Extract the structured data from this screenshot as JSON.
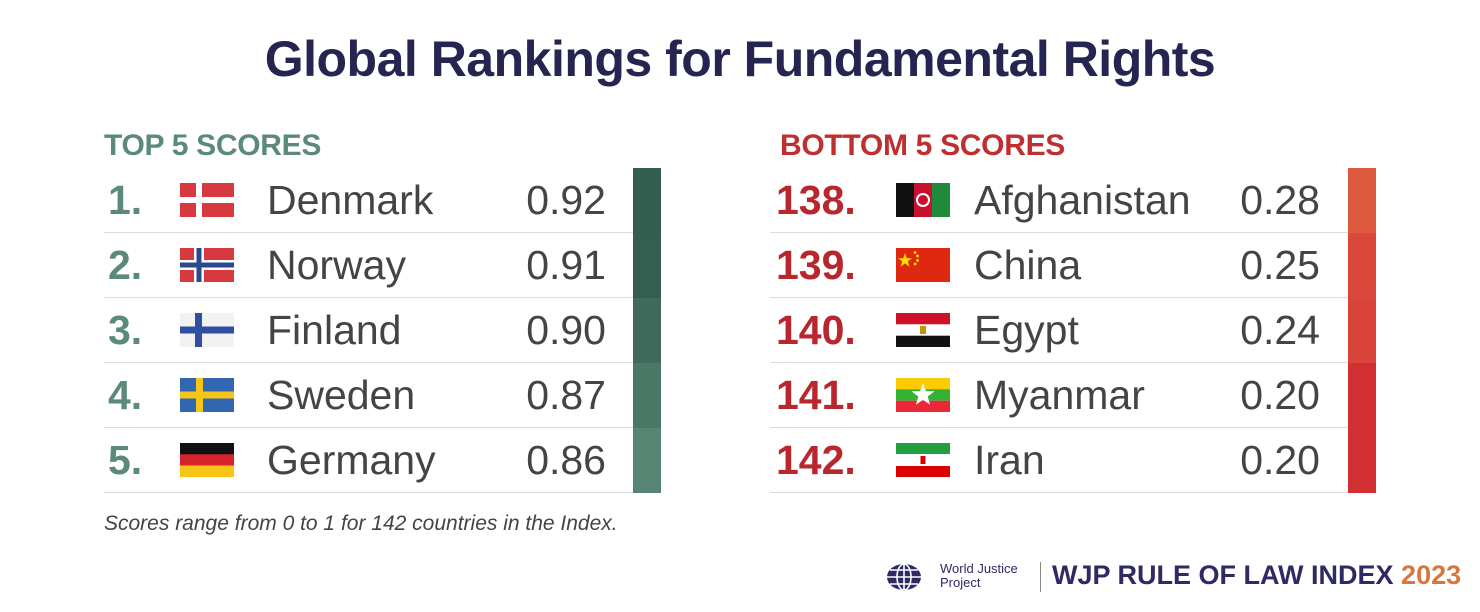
{
  "title": "Global Rankings for Fundamental Rights",
  "chart_data": [
    {
      "type": "table",
      "title": "TOP 5 SCORES",
      "ranks": [
        "1.",
        "2.",
        "3.",
        "4.",
        "5."
      ],
      "categories": [
        "Denmark",
        "Norway",
        "Finland",
        "Sweden",
        "Germany"
      ],
      "scores": [
        "0.92",
        "0.91",
        "0.90",
        "0.87",
        "0.86"
      ],
      "values": [
        0.92,
        0.91,
        0.9,
        0.87,
        0.86
      ],
      "color_scale": [
        "#335e4f",
        "#345f50",
        "#3f6b5c",
        "#4a7867",
        "#568573"
      ]
    },
    {
      "type": "table",
      "title": "BOTTOM 5 SCORES",
      "ranks": [
        "138.",
        "139.",
        "140.",
        "141.",
        "142."
      ],
      "categories": [
        "Afghanistan",
        "China",
        "Egypt",
        "Myanmar",
        "Iran"
      ],
      "scores": [
        "0.28",
        "0.25",
        "0.24",
        "0.20",
        "0.20"
      ],
      "values": [
        0.28,
        0.25,
        0.24,
        0.2,
        0.2
      ],
      "color_scale": [
        "#dd5a3e",
        "#db473a",
        "#d9433a",
        "#d22f32",
        "#d22f32"
      ]
    }
  ],
  "footnote": "Scores range from 0 to 1 for 142 countries in the Index.",
  "footer": {
    "org_line1": "World Justice",
    "org_line2": "Project",
    "index_label": "WJP RULE OF LAW INDEX",
    "year": "2023"
  },
  "colors": {
    "title": "#262450",
    "top_accent": "#5b8a79",
    "bottom_accent": "#bf2f2f",
    "text": "#444444",
    "year": "#d9763b"
  }
}
